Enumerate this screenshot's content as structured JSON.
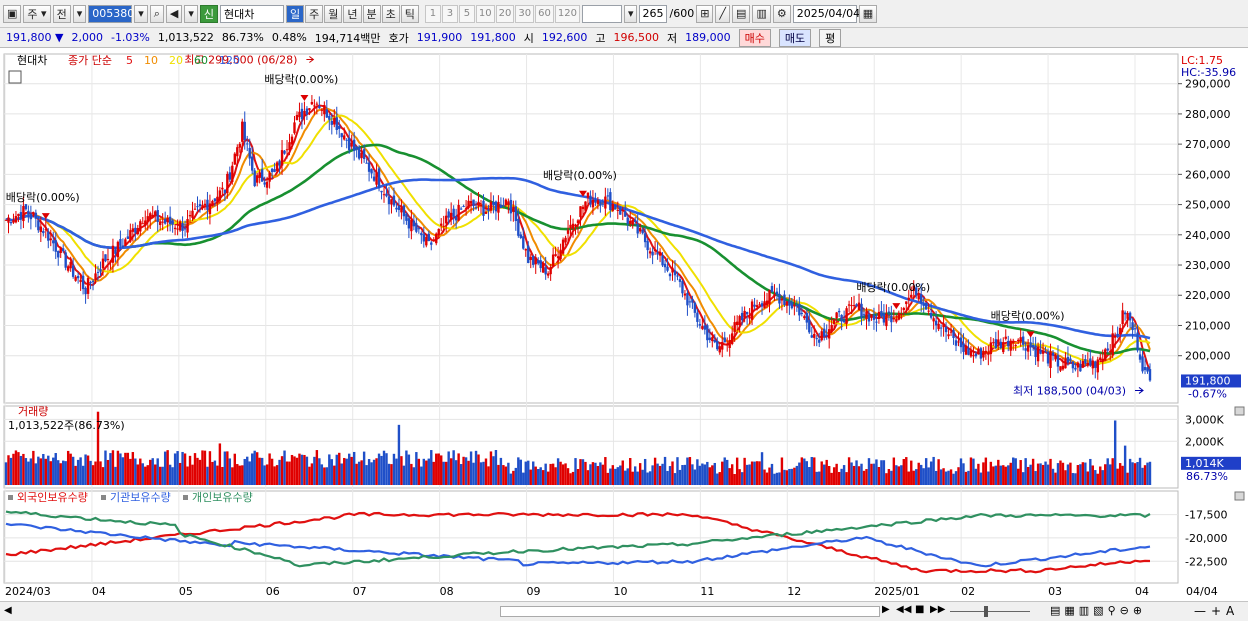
{
  "toolbar": {
    "period_mode": "주",
    "prev_label": "전",
    "code": "005380",
    "badge": "신",
    "name": "현대차",
    "period_tabs": [
      "일",
      "주",
      "월",
      "년",
      "분",
      "초",
      "틱"
    ],
    "intervals": [
      "1",
      "3",
      "5",
      "10",
      "20",
      "30",
      "60",
      "120"
    ],
    "count": "265",
    "count_total": "/600",
    "date": "2025/04/04"
  },
  "quote": {
    "price": "191,800",
    "arrow": "▼",
    "change": "2,000",
    "change_pct": "-1.03%",
    "volume": "1,013,522",
    "volume_ratio": "86.73%",
    "turnover_ratio": "0.48%",
    "amount": "194,714백만",
    "ask_label": "호가",
    "ask": "191,900",
    "bid": "191,800",
    "open_label": "시",
    "open": "192,600",
    "high_label": "고",
    "high": "196,500",
    "low_label": "저",
    "low": "189,000",
    "buy": "매수",
    "sell": "매도",
    "avg": "평"
  },
  "price_panel": {
    "stock_label": "현대차",
    "ma_label": "종가 단순",
    "lc": "LC:1.75",
    "hc": "HC:-35.96",
    "high_annot": "최고 299,500 (06/28)",
    "low_annot": "최저 188,500 (04/03)",
    "dividend_labels": [
      "배당락(0.00%)",
      "배당락(0.00%)",
      "배당락(0.00%)",
      "배당락(0.00%)",
      "배당락(0.00%)"
    ],
    "last_price": "191,800",
    "last_pct": "-0.67%"
  },
  "volume_panel": {
    "title": "거래량",
    "value_label": "1,013,522주(86.73%)",
    "last": "1,014K",
    "last_pct": "86.73%"
  },
  "holding_panel": {
    "legend": [
      "외국인보유수량",
      "기관보유수량",
      "개인보유수량"
    ]
  },
  "colors": {
    "up": "#e00000",
    "down": "#1f4fc8",
    "ma5": "#e01010",
    "ma10": "#f08c00",
    "ma20": "#f0e000",
    "ma60": "#189030",
    "ma120": "#3060e0",
    "foreign": "#e01010",
    "inst": "#3060e0",
    "indiv": "#2f9060"
  },
  "chart_data": {
    "type": "candlestick",
    "price_yaxis": {
      "ticks": [
        200000,
        210000,
        220000,
        230000,
        240000,
        250000,
        260000,
        270000,
        280000,
        290000
      ],
      "range": [
        186000,
        298500
      ]
    },
    "volume_yaxis": {
      "ticks": [
        2000,
        3000
      ],
      "unit": "K"
    },
    "holding_yaxis": {
      "ticks": [
        -22500,
        -20000,
        -17500
      ]
    },
    "x_labels": [
      "2024/03",
      "04",
      "05",
      "06",
      "07",
      "08",
      "09",
      "10",
      "11",
      "12",
      "2025/01",
      "02",
      "03",
      "04"
    ],
    "last_date": "04/04",
    "moving_averages": [
      {
        "period": 5
      },
      {
        "period": 10
      },
      {
        "period": 20
      },
      {
        "period": 60
      },
      {
        "period": 120
      }
    ],
    "close_keypoints": [
      [
        0,
        245000
      ],
      [
        8,
        248000
      ],
      [
        16,
        241000
      ],
      [
        24,
        231000
      ],
      [
        32,
        222000
      ],
      [
        40,
        232000
      ],
      [
        48,
        238000
      ],
      [
        56,
        247000
      ],
      [
        64,
        244000
      ],
      [
        72,
        243000
      ],
      [
        80,
        250000
      ],
      [
        88,
        255000
      ],
      [
        95,
        275000
      ],
      [
        100,
        258000
      ],
      [
        108,
        260000
      ],
      [
        116,
        277000
      ],
      [
        124,
        285000
      ],
      [
        132,
        278000
      ],
      [
        140,
        268000
      ],
      [
        148,
        260000
      ],
      [
        156,
        250000
      ],
      [
        162,
        244000
      ],
      [
        170,
        236000
      ],
      [
        178,
        245000
      ],
      [
        186,
        250000
      ],
      [
        194,
        248000
      ],
      [
        202,
        252000
      ],
      [
        210,
        232000
      ],
      [
        218,
        228000
      ],
      [
        226,
        242000
      ],
      [
        234,
        252000
      ],
      [
        240,
        252000
      ],
      [
        246,
        249000
      ],
      [
        254,
        241000
      ],
      [
        262,
        233000
      ],
      [
        270,
        225000
      ],
      [
        278,
        212000
      ],
      [
        286,
        202000
      ],
      [
        294,
        210000
      ],
      [
        302,
        218000
      ],
      [
        310,
        220000
      ],
      [
        318,
        216000
      ],
      [
        326,
        206000
      ],
      [
        334,
        212000
      ],
      [
        342,
        216000
      ],
      [
        350,
        212000
      ],
      [
        358,
        214000
      ],
      [
        366,
        222000
      ],
      [
        374,
        212000
      ],
      [
        382,
        204000
      ],
      [
        390,
        200000
      ],
      [
        398,
        204000
      ],
      [
        406,
        206000
      ],
      [
        414,
        202000
      ],
      [
        422,
        198000
      ],
      [
        430,
        196000
      ],
      [
        438,
        198000
      ],
      [
        446,
        206000
      ],
      [
        450,
        215000
      ],
      [
        454,
        207000
      ],
      [
        458,
        194000
      ],
      [
        460,
        191800
      ]
    ],
    "dividend_marks": [
      16,
      120,
      232,
      358,
      412
    ]
  }
}
